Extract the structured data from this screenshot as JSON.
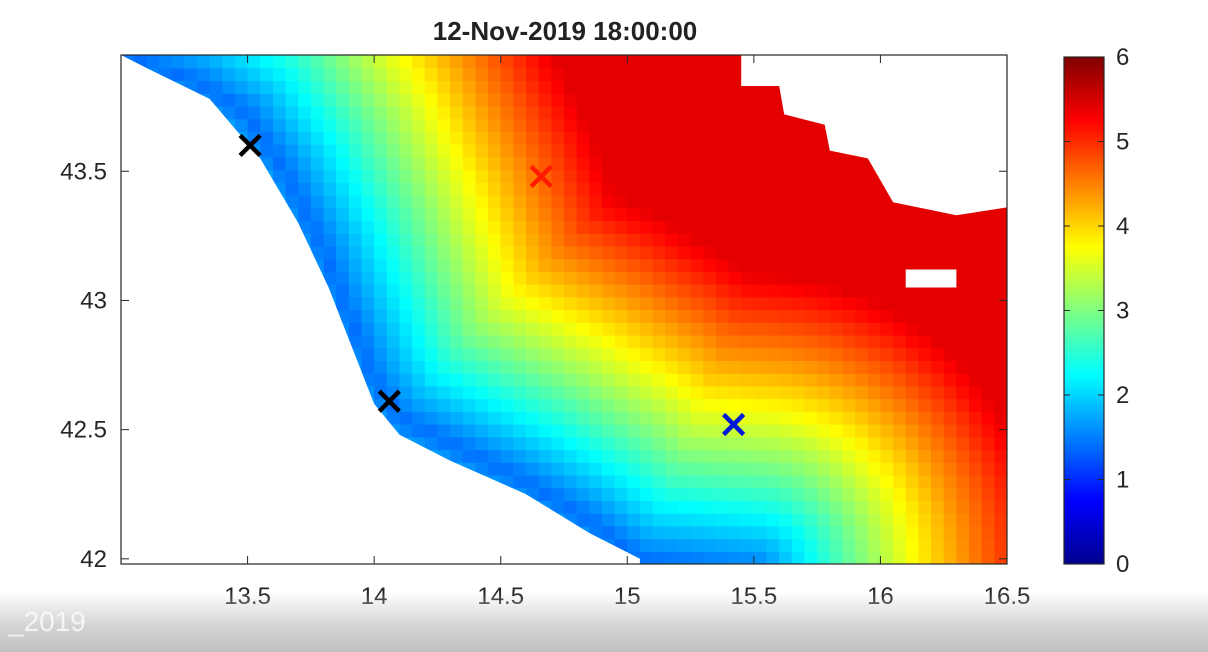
{
  "watermark": "_2019",
  "chart_data": {
    "type": "heatmap",
    "title": "12-Nov-2019 18:00:00",
    "xlabel": "",
    "ylabel": "",
    "xlim": [
      13.0,
      16.5
    ],
    "ylim": [
      41.98,
      43.95
    ],
    "x_ticks": [
      13.5,
      14,
      14.5,
      15,
      15.5,
      16,
      16.5
    ],
    "x_tick_labels": [
      "13.5",
      "14",
      "14.5",
      "15",
      "15.5",
      "16",
      "16.5"
    ],
    "y_ticks": [
      42,
      42.5,
      43,
      43.5
    ],
    "y_tick_labels": [
      "42",
      "42.5",
      "43",
      "43.5"
    ],
    "colorbar": {
      "colormap": "jet",
      "clim": [
        0,
        6
      ],
      "ticks": [
        0,
        1,
        2,
        3,
        4,
        5,
        6
      ],
      "tick_labels": [
        "0",
        "1",
        "2",
        "3",
        "4",
        "5",
        "6"
      ]
    },
    "field_model": {
      "description": "Gridded value field: increases across the basin from the south-west coast toward the north-east, about 1-2 near the western coast, around 3.5-4 along the central diagonal and 5-5.5 in the north-east.",
      "low_coast": [
        [
          13.0,
          43.95
        ],
        [
          13.3,
          43.85
        ],
        [
          13.5,
          43.72
        ],
        [
          13.65,
          43.5
        ],
        [
          13.8,
          43.2
        ],
        [
          13.92,
          42.9
        ],
        [
          14.0,
          42.7
        ],
        [
          14.1,
          42.55
        ],
        [
          14.3,
          42.45
        ],
        [
          14.6,
          42.3
        ],
        [
          14.85,
          42.15
        ],
        [
          15.05,
          42.0
        ],
        [
          15.5,
          41.95
        ]
      ],
      "value_at_coast": 1.4,
      "value_at_far": 5.4,
      "decay_deg": 1.15
    },
    "land_mask_west": [
      [
        13.0,
        43.95
      ],
      [
        13.0,
        41.98
      ],
      [
        15.05,
        41.98
      ],
      [
        15.05,
        42.0
      ],
      [
        14.85,
        42.1
      ],
      [
        14.6,
        42.25
      ],
      [
        14.3,
        42.38
      ],
      [
        14.1,
        42.48
      ],
      [
        14.0,
        42.6
      ],
      [
        13.92,
        42.8
      ],
      [
        13.82,
        43.05
      ],
      [
        13.7,
        43.3
      ],
      [
        13.55,
        43.55
      ],
      [
        13.35,
        43.78
      ],
      [
        13.1,
        43.9
      ]
    ],
    "land_mask_northeast": [
      [
        15.45,
        43.95
      ],
      [
        15.45,
        43.83
      ],
      [
        15.6,
        43.83
      ],
      [
        15.62,
        43.72
      ],
      [
        15.78,
        43.68
      ],
      [
        15.8,
        43.58
      ],
      [
        15.95,
        43.55
      ],
      [
        16.05,
        43.38
      ],
      [
        16.3,
        43.33
      ],
      [
        16.5,
        43.36
      ],
      [
        16.5,
        43.95
      ]
    ],
    "land_mask_island": [
      [
        16.1,
        43.12
      ],
      [
        16.1,
        43.05
      ],
      [
        16.3,
        43.05
      ],
      [
        16.3,
        43.12
      ]
    ],
    "markers": [
      {
        "label": "black-1",
        "x": 13.51,
        "y": 43.6,
        "color": "#000000"
      },
      {
        "label": "red",
        "x": 14.66,
        "y": 43.48,
        "color": "#ff1a00"
      },
      {
        "label": "black-2",
        "x": 14.06,
        "y": 42.61,
        "color": "#000000"
      },
      {
        "label": "blue",
        "x": 15.42,
        "y": 42.52,
        "color": "#0019d6"
      }
    ]
  }
}
